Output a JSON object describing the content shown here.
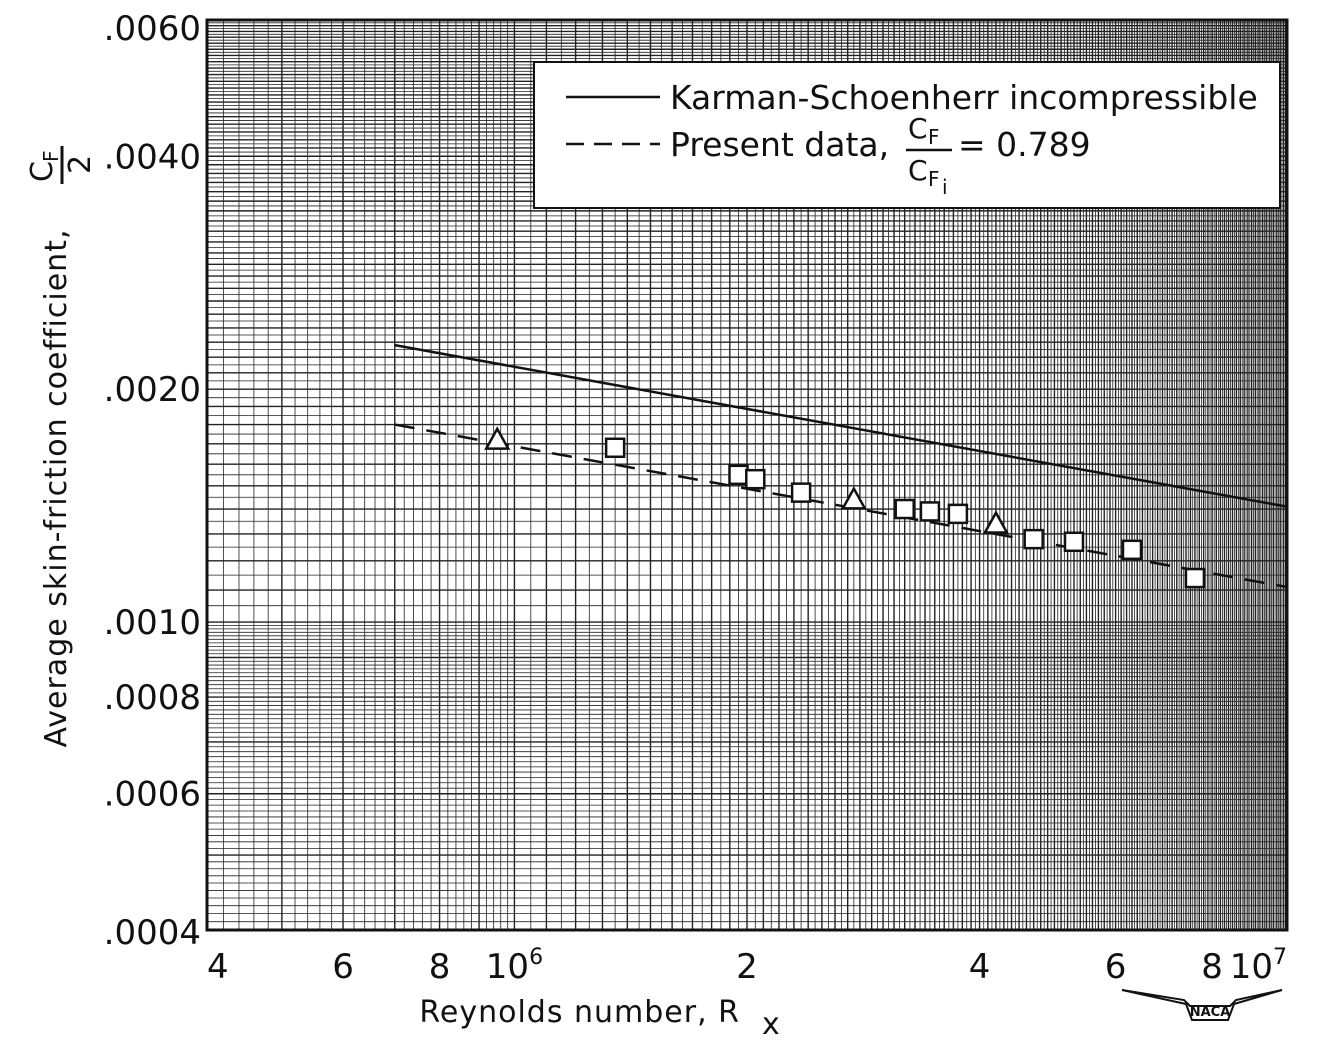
{
  "chart_data": {
    "type": "scatter",
    "xscale": "log",
    "yscale": "log",
    "xlim": [
      400000,
      10000000
    ],
    "ylim": [
      0.0004,
      0.006
    ],
    "grid": true,
    "legend_position": "top-right",
    "xlabel": "Reynolds number, R",
    "xlabel_sub": "x",
    "ylabel": "Average skin-friction coefficient,",
    "ylabel_symbol_num": "C",
    "ylabel_symbol_num_sub": "F",
    "ylabel_symbol_den": "2",
    "x_ticks": [
      {
        "value": 400000,
        "label": "4"
      },
      {
        "value": 600000,
        "label": "6"
      },
      {
        "value": 800000,
        "label": "8"
      },
      {
        "value": 1000000,
        "label": "10",
        "sup": "6"
      },
      {
        "value": 2000000,
        "label": "2"
      },
      {
        "value": 4000000,
        "label": "4"
      },
      {
        "value": 6000000,
        "label": "6"
      },
      {
        "value": 8000000,
        "label": "8"
      },
      {
        "value": 10000000,
        "label": "10",
        "sup": "7"
      }
    ],
    "y_ticks": [
      {
        "value": 0.0004,
        "label": ".0004"
      },
      {
        "value": 0.0006,
        "label": ".0006"
      },
      {
        "value": 0.0008,
        "label": ".0008"
      },
      {
        "value": 0.001,
        "label": ".0010"
      },
      {
        "value": 0.002,
        "label": ".0020"
      },
      {
        "value": 0.004,
        "label": ".0040"
      },
      {
        "value": 0.006,
        "label": ".0060"
      }
    ],
    "series": [
      {
        "name": "Karman-Schoenherr incompressible",
        "style": "solid",
        "x": [
          700000,
          10000000
        ],
        "y": [
          0.00228,
          0.00141
        ]
      },
      {
        "name": "Present data,",
        "style": "dashed",
        "x": [
          700000,
          10000000
        ],
        "y": [
          0.0018,
          0.00111
        ]
      },
      {
        "style": "markers",
        "x": [
          950000,
          1350000,
          1950000,
          2050000,
          2350000,
          2750000,
          3200000,
          3450000,
          3750000,
          4200000,
          4700000,
          5300000,
          6300000,
          7600000
        ],
        "y": [
          0.00172,
          0.00168,
          0.00155,
          0.00153,
          0.00147,
          0.00144,
          0.0014,
          0.00139,
          0.00138,
          0.00134,
          0.00128,
          0.00127,
          0.00124,
          0.00114
        ],
        "marker_shapes": [
          "triangle",
          "square",
          "square",
          "square",
          "square",
          "triangle",
          "square",
          "square",
          "square",
          "triangle",
          "square",
          "square",
          "square",
          "square"
        ]
      }
    ],
    "legend": {
      "entries": [
        "Karman-Schoenherr incompressible",
        "Present data,"
      ],
      "ratio_num": "C",
      "ratio_num_sub": "F",
      "ratio_den": "C",
      "ratio_den_sub": "F",
      "ratio_den_sub2": "i",
      "ratio_value": "= 0.789"
    },
    "emblem_text": "NACA"
  }
}
